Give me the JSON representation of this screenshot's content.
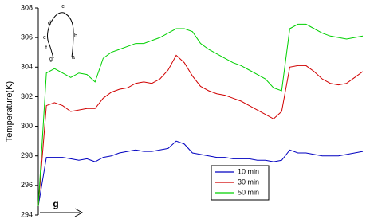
{
  "chart_data": {
    "type": "line",
    "y_label": "Temperature(K)",
    "x_label": "g",
    "inset_labels": [
      "a",
      "b",
      "c",
      "d",
      "e",
      "f",
      "g"
    ],
    "ylim": [
      294,
      308
    ],
    "yticks": [
      294,
      296,
      298,
      300,
      302,
      304,
      306,
      308
    ],
    "legend": "lower right",
    "grid": false,
    "series": [
      {
        "name": "10 min",
        "color": "#0000c0",
        "values": [
          294.6,
          297.9,
          297.9,
          297.9,
          297.8,
          297.7,
          297.8,
          297.6,
          297.9,
          298.0,
          298.2,
          298.3,
          298.4,
          298.3,
          298.3,
          298.4,
          298.5,
          299.0,
          298.8,
          298.2,
          298.1,
          298.0,
          297.9,
          297.9,
          297.8,
          297.8,
          297.8,
          297.7,
          297.7,
          297.6,
          297.7,
          298.4,
          298.2,
          298.2,
          298.1,
          298.0,
          298.0,
          298.0,
          298.1,
          298.2,
          298.3
        ]
      },
      {
        "name": "30 min",
        "color": "#d00000",
        "values": [
          294.6,
          301.4,
          301.6,
          301.4,
          301.0,
          301.1,
          301.2,
          301.2,
          301.9,
          302.3,
          302.5,
          302.6,
          302.9,
          303.0,
          302.9,
          303.2,
          303.8,
          304.8,
          304.3,
          303.4,
          302.7,
          302.4,
          302.2,
          302.1,
          301.9,
          301.7,
          301.4,
          301.1,
          300.8,
          300.5,
          301.0,
          304.0,
          304.1,
          304.1,
          303.7,
          303.2,
          302.9,
          302.8,
          302.9,
          303.3,
          303.7
        ]
      },
      {
        "name": "50 min",
        "color": "#00d000",
        "values": [
          294.6,
          303.6,
          303.9,
          303.6,
          303.3,
          303.6,
          303.5,
          303.0,
          304.6,
          305.0,
          305.2,
          305.4,
          305.6,
          305.6,
          305.8,
          306.0,
          306.3,
          306.6,
          306.6,
          306.4,
          305.6,
          305.2,
          304.9,
          304.6,
          304.3,
          304.1,
          303.8,
          303.5,
          303.2,
          302.6,
          302.4,
          306.6,
          306.9,
          306.9,
          306.6,
          306.3,
          306.1,
          306.0,
          305.9,
          306.0,
          306.1
        ]
      }
    ]
  }
}
